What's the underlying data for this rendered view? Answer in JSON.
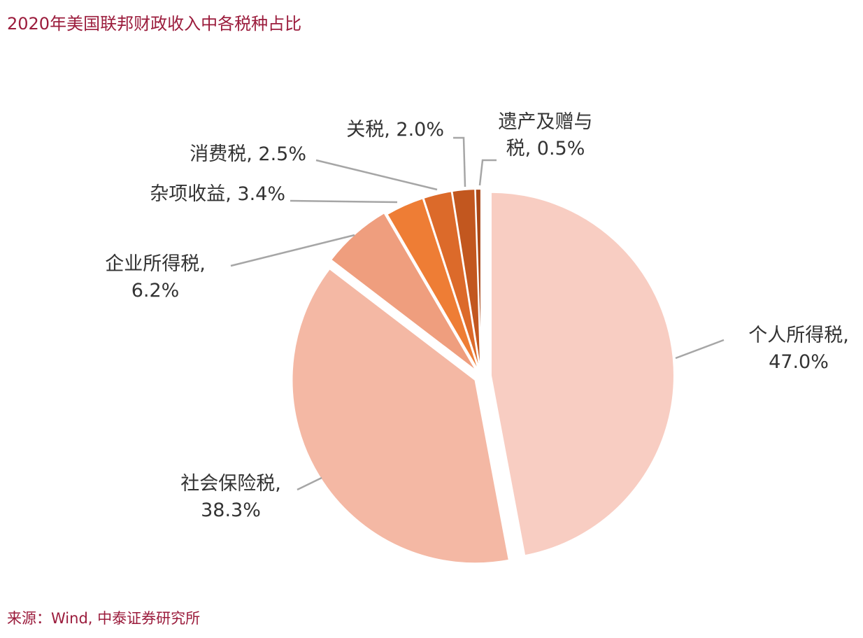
{
  "title": "2020年美国联邦财政收入中各税种占比",
  "source": "来源：Wind, 中泰证券研究所",
  "chart_data": {
    "type": "pie",
    "title": "2020年美国联邦财政收入中各税种占比",
    "unit": "%",
    "slices": [
      {
        "name": "个人所得税",
        "value": 47.0,
        "label_lines": [
          "个人所得税,",
          "47.0%"
        ],
        "color": "#f8cdc2"
      },
      {
        "name": "社会保险税",
        "value": 38.3,
        "label_lines": [
          "社会保险税,",
          "38.3%"
        ],
        "color": "#f4b8a4"
      },
      {
        "name": "企业所得税",
        "value": 6.2,
        "label_lines": [
          "企业所得税,",
          "6.2%"
        ],
        "color": "#ef9e7e"
      },
      {
        "name": "杂项收益",
        "value": 3.4,
        "label_lines": [
          "杂项收益, 3.4%"
        ],
        "color": "#ee7d35"
      },
      {
        "name": "消费税",
        "value": 2.5,
        "label_lines": [
          "消费税, 2.5%"
        ],
        "color": "#dc6a2a"
      },
      {
        "name": "关税",
        "value": 2.0,
        "label_lines": [
          "关税, 2.0%"
        ],
        "color": "#c2571f"
      },
      {
        "name": "遗产及赠与税",
        "value": 0.5,
        "label_lines": [
          "遗产及赠与",
          "税, 0.5%"
        ],
        "color": "#a94717"
      }
    ]
  }
}
